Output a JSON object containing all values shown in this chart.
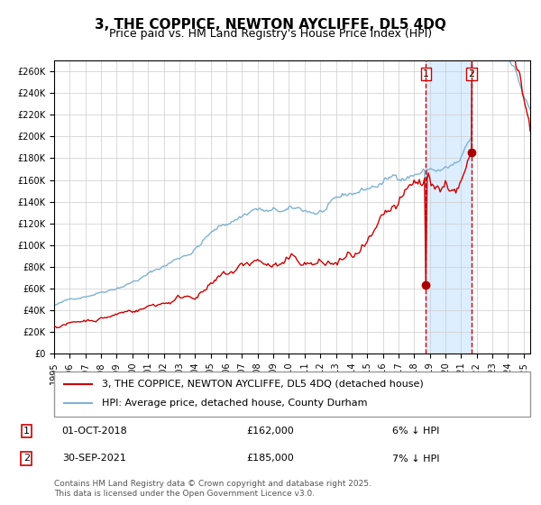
{
  "title": "3, THE COPPICE, NEWTON AYCLIFFE, DL5 4DQ",
  "subtitle": "Price paid vs. HM Land Registry's House Price Index (HPI)",
  "xlabel": "",
  "ylabel": "",
  "ylim": [
    0,
    270000
  ],
  "ytick_step": 20000,
  "line1_color": "#cc0000",
  "line2_color": "#7fb3d3",
  "bg_color": "#ffffff",
  "grid_color": "#cccccc",
  "highlight_bg": "#ddeeff",
  "marker_color": "#aa0000",
  "dashed_color": "#cc0000",
  "legend_line1": "3, THE COPPICE, NEWTON AYCLIFFE, DL5 4DQ (detached house)",
  "legend_line2": "HPI: Average price, detached house, County Durham",
  "annotation1_label": "1",
  "annotation1_date": "01-OCT-2018",
  "annotation1_price": "£162,000",
  "annotation1_hpi": "6% ↓ HPI",
  "annotation2_label": "2",
  "annotation2_date": "30-SEP-2021",
  "annotation2_price": "£185,000",
  "annotation2_hpi": "7% ↓ HPI",
  "footer": "Contains HM Land Registry data © Crown copyright and database right 2025.\nThis data is licensed under the Open Government Licence v3.0.",
  "title_fontsize": 11,
  "subtitle_fontsize": 9,
  "tick_fontsize": 7,
  "legend_fontsize": 8,
  "annotation_fontsize": 8,
  "footer_fontsize": 6.5
}
